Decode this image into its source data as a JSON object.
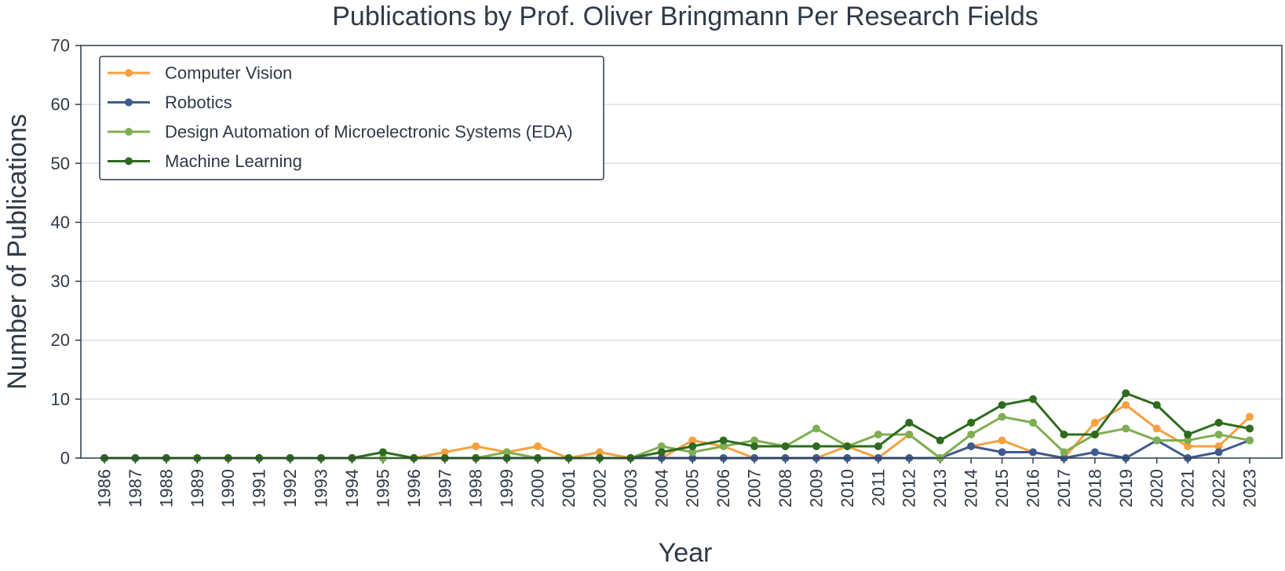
{
  "chart_data": {
    "type": "line",
    "title": "Publications by Prof. Oliver Bringmann Per Research Fields",
    "xlabel": "Year",
    "ylabel": "Number of Publications",
    "ylim": [
      0,
      70
    ],
    "yticks": [
      0,
      10,
      20,
      30,
      40,
      50,
      60,
      70
    ],
    "grid": "horizontal",
    "legend_position": "top-left",
    "x": [
      "1986",
      "1987",
      "1988",
      "1989",
      "1990",
      "1991",
      "1992",
      "1993",
      "1994",
      "1995",
      "1996",
      "1997",
      "1998",
      "1999",
      "2000",
      "2001",
      "2002",
      "2003",
      "2004",
      "2005",
      "2006",
      "2007",
      "2008",
      "2009",
      "2010",
      "2011",
      "2012",
      "2013",
      "2014",
      "2015",
      "2016",
      "2017",
      "2018",
      "2019",
      "2020",
      "2021",
      "2022",
      "2023"
    ],
    "series": [
      {
        "name": "Computer Vision",
        "color": "#f7a040",
        "values": [
          0,
          0,
          0,
          0,
          0,
          0,
          0,
          0,
          0,
          0,
          0,
          1,
          2,
          1,
          2,
          0,
          1,
          0,
          0,
          3,
          2,
          0,
          0,
          0,
          2,
          0,
          4,
          0,
          2,
          3,
          1,
          0,
          6,
          9,
          5,
          2,
          2,
          7
        ]
      },
      {
        "name": "Robotics",
        "color": "#3f5b8e",
        "values": [
          0,
          0,
          0,
          0,
          0,
          0,
          0,
          0,
          0,
          0,
          0,
          0,
          0,
          0,
          0,
          0,
          0,
          0,
          0,
          0,
          0,
          0,
          0,
          0,
          0,
          0,
          0,
          0,
          2,
          1,
          1,
          0,
          1,
          0,
          3,
          0,
          1,
          3
        ]
      },
      {
        "name": "Design Automation of Microelectronic Systems (EDA)",
        "color": "#7fae52",
        "values": [
          0,
          0,
          0,
          0,
          0,
          0,
          0,
          0,
          0,
          0,
          0,
          0,
          0,
          1,
          0,
          0,
          0,
          0,
          2,
          1,
          2,
          3,
          2,
          5,
          2,
          4,
          4,
          0,
          4,
          7,
          6,
          1,
          4,
          5,
          3,
          3,
          4,
          3
        ]
      },
      {
        "name": "Machine Learning",
        "color": "#2e6b1e",
        "values": [
          0,
          0,
          0,
          0,
          0,
          0,
          0,
          0,
          0,
          1,
          0,
          0,
          0,
          0,
          0,
          0,
          0,
          0,
          1,
          2,
          3,
          2,
          2,
          2,
          2,
          2,
          6,
          3,
          6,
          9,
          10,
          4,
          4,
          11,
          9,
          4,
          6,
          5
        ]
      }
    ]
  }
}
